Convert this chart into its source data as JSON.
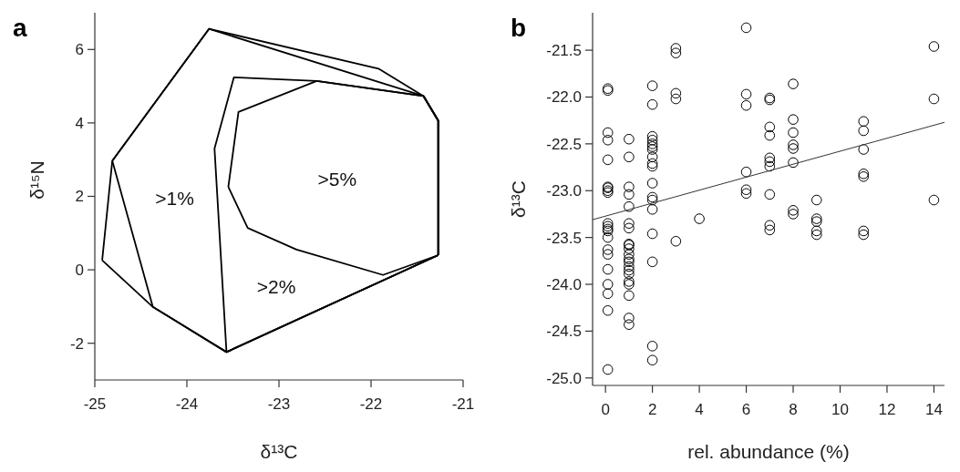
{
  "chart_data": [
    {
      "type": "line",
      "title": "a",
      "xlabel": "δ¹³C",
      "ylabel": "δ¹⁵N",
      "xlim": [
        -25,
        -21
      ],
      "ylim": [
        -3,
        7
      ],
      "xticks": [
        -25,
        -24,
        -23,
        -22,
        -21
      ],
      "yticks": [
        -2,
        0,
        2,
        4,
        6
      ],
      "line_style": "solid",
      "series": [
        {
          "color": "#000000",
          "x": [
            -24.92,
            -24.81,
            -23.76,
            -21.92,
            -21.43,
            -21.27,
            -21.27
          ],
          "values": [
            0.26,
            2.97,
            6.56,
            5.48,
            4.73,
            4.06,
            0.4
          ]
        },
        {
          "color": "#000000",
          "x": [
            -24.92,
            -24.37,
            -23.57,
            -21.27
          ],
          "values": [
            0.26,
            -1.01,
            -2.24,
            0.4
          ]
        },
        {
          "color": "#000000",
          "x": [
            -24.81,
            -23.76,
            -21.43,
            -21.27,
            -21.27
          ],
          "values": [
            2.97,
            6.56,
            4.73,
            4.06,
            0.4
          ]
        },
        {
          "color": "#000000",
          "x": [
            -24.81,
            -24.37,
            -23.57,
            -21.27
          ],
          "values": [
            2.97,
            -1.01,
            -2.24,
            0.4
          ]
        },
        {
          "color": "#000000",
          "x": [
            -23.57,
            -23.7,
            -23.49,
            -22.59,
            -21.43,
            -21.27,
            -21.27
          ],
          "values": [
            -2.24,
            3.3,
            5.24,
            5.14,
            4.73,
            4.06,
            0.4
          ]
        },
        {
          "color": "#000000",
          "x": [
            -23.57,
            -21.27
          ],
          "values": [
            -2.24,
            0.4
          ]
        },
        {
          "color": "#000000",
          "x": [
            -23.55,
            -23.44,
            -22.59,
            -21.43,
            -21.27,
            -21.27
          ],
          "values": [
            2.26,
            4.3,
            5.14,
            4.73,
            4.06,
            0.4
          ]
        },
        {
          "color": "#000000",
          "x": [
            -23.55,
            -23.34,
            -22.81,
            -21.87,
            -21.27
          ],
          "values": [
            2.26,
            1.14,
            0.55,
            -0.14,
            0.4
          ]
        }
      ],
      "annotations": [
        ">1%",
        ">2%",
        ">5%"
      ]
    },
    {
      "type": "scatter",
      "title": "b",
      "xlabel": "rel. abundance (%)",
      "ylabel": "δ¹³C",
      "xlim": [
        -0.55,
        14.45
      ],
      "ylim": [
        -25.08,
        -21.1
      ],
      "xticks": [
        0,
        2,
        4,
        6,
        8,
        10,
        12,
        14
      ],
      "yticks": [
        {
          "value": -25,
          "label": "-25.0"
        },
        -24.5,
        {
          "value": -24,
          "label": "-24.0"
        },
        -23.5,
        {
          "value": -23,
          "label": "-23.0"
        },
        -22.5,
        {
          "value": -22,
          "label": "-22.0"
        },
        -21.5
      ],
      "series": [
        {
          "marker": "circle",
          "color": "#000000",
          "x": [
            0.1,
            0.1,
            0.1,
            0.1,
            0.1,
            0.1,
            0.1,
            0.1,
            0.1,
            0.1,
            0.1,
            0.1,
            0.1,
            0.1,
            0.1,
            0.1,
            0.1,
            0.1,
            0.1,
            0.1,
            0.1,
            1,
            1,
            1,
            1,
            1,
            1,
            1,
            1,
            1,
            1,
            1,
            1,
            1,
            1,
            1,
            1,
            1,
            1,
            1,
            1,
            1,
            2,
            2,
            2,
            2,
            2,
            2,
            2,
            2,
            2,
            2,
            2,
            2,
            2,
            2,
            2,
            2,
            2,
            2,
            3,
            3,
            3,
            3,
            3,
            4,
            6,
            6,
            6,
            6,
            6,
            6,
            7,
            7,
            7,
            7,
            7,
            7,
            7,
            7,
            7,
            7,
            8,
            8,
            8,
            8,
            8,
            8,
            8,
            8,
            9,
            9,
            9,
            9,
            9,
            11,
            11,
            11,
            11,
            11,
            11,
            11,
            14,
            14,
            14
          ],
          "values": [
            -21.91,
            -21.93,
            -22.38,
            -22.46,
            -22.67,
            -22.96,
            -23.0,
            -23.02,
            -23.35,
            -23.38,
            -23.41,
            -23.43,
            -23.5,
            -23.63,
            -23.68,
            -23.84,
            -24.0,
            -24.1,
            -24.28,
            -24.91,
            -22.97,
            -22.45,
            -22.64,
            -22.96,
            -23.04,
            -23.17,
            -23.35,
            -23.4,
            -23.57,
            -23.58,
            -23.68,
            -23.73,
            -23.76,
            -23.81,
            -23.89,
            -23.97,
            -24.0,
            -24.12,
            -24.36,
            -24.43,
            -23.62,
            -23.85,
            -21.88,
            -22.08,
            -22.42,
            -22.46,
            -22.5,
            -22.53,
            -22.56,
            -22.64,
            -22.71,
            -22.74,
            -22.92,
            -23.07,
            -23.1,
            -23.2,
            -23.46,
            -23.76,
            -24.66,
            -24.81,
            -21.48,
            -21.53,
            -21.96,
            -22.02,
            -23.54,
            -23.3,
            -21.26,
            -21.97,
            -22.09,
            -22.8,
            -22.99,
            -23.03,
            -22.01,
            -22.03,
            -22.32,
            -22.41,
            -22.65,
            -22.69,
            -22.74,
            -23.04,
            -23.37,
            -23.42,
            -21.86,
            -22.24,
            -22.38,
            -22.51,
            -22.55,
            -22.7,
            -23.21,
            -23.25,
            -23.1,
            -23.3,
            -23.33,
            -23.43,
            -23.47,
            -22.26,
            -22.36,
            -22.56,
            -22.82,
            -22.85,
            -23.43,
            -23.47,
            -21.46,
            -22.02,
            -23.1
          ]
        },
        {
          "type": "line",
          "color": "#333333",
          "x": [
            -0.55,
            14.45
          ],
          "values": [
            -23.31,
            -22.27
          ]
        }
      ]
    }
  ]
}
